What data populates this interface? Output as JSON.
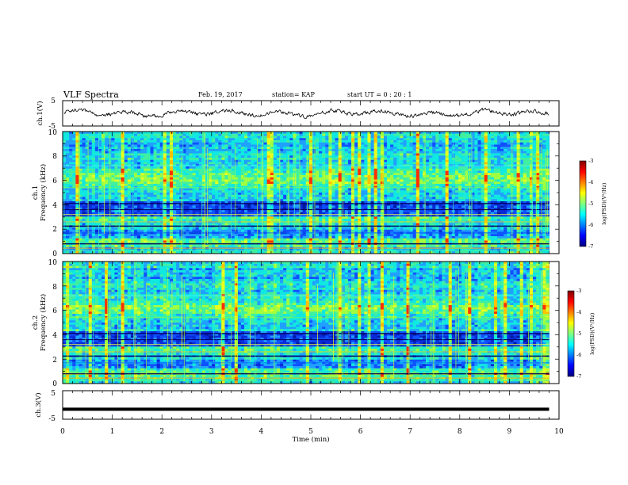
{
  "header": {
    "title": "VLF Spectra",
    "date": "Feb. 19, 2017",
    "station": "station= KAP",
    "start": "start  UT  =   0  : 20 : 1"
  },
  "chart_data": [
    {
      "type": "line",
      "name": "ch1-waveform",
      "ylabel": "ch.1(V)",
      "ylim": [
        -5,
        5
      ],
      "yticks": [
        "5",
        "-5"
      ],
      "xlim": [
        0,
        10
      ],
      "x_end": 9.8,
      "description_values": {
        "mean": 0,
        "amplitude": 1.5
      }
    },
    {
      "type": "heatmap",
      "name": "ch1-spectrogram",
      "ylabel_lines": [
        "ch.1",
        "Frequency  (kHz)"
      ],
      "ylim": [
        0,
        10
      ],
      "yticks": [
        "0",
        "2",
        "4",
        "6",
        "8",
        "10"
      ],
      "xlim": [
        0,
        10
      ],
      "x_end": 9.8,
      "colorbar": {
        "label": "log(PSD)(V²/Hz)",
        "range": [
          -7,
          -3
        ],
        "ticks": [
          "-3",
          "-4",
          "-5",
          "-6",
          "-7"
        ],
        "colors": [
          "#00007f",
          "#0000ff",
          "#007fff",
          "#00ffff",
          "#7fff7f",
          "#ffff00",
          "#ff7f00",
          "#ff0000",
          "#7f0000"
        ]
      }
    },
    {
      "type": "heatmap",
      "name": "ch2-spectrogram",
      "ylabel_lines": [
        "ch.2",
        "Frequency  (kHz)"
      ],
      "ylim": [
        0,
        10
      ],
      "yticks": [
        "0",
        "2",
        "4",
        "6",
        "8",
        "10"
      ],
      "xlim": [
        0,
        10
      ],
      "x_end": 9.8,
      "colorbar": {
        "label": "log(PSD)(V²/Hz)",
        "range": [
          -7,
          -3
        ],
        "ticks": [
          "-3",
          "-4",
          "-5",
          "-6",
          "-7"
        ],
        "colors": [
          "#00007f",
          "#0000ff",
          "#007fff",
          "#00ffff",
          "#7fff7f",
          "#ffff00",
          "#ff7f00",
          "#ff0000",
          "#7f0000"
        ]
      }
    },
    {
      "type": "line",
      "name": "ch3-waveform",
      "ylabel": "ch.3(V)",
      "ylim": [
        -5,
        5
      ],
      "yticks": [
        "5",
        "-5"
      ],
      "xlim": [
        0,
        10
      ],
      "x_end": 9.8,
      "constant_value": -1.5
    }
  ],
  "xaxis": {
    "label": "Time  (min)",
    "ticks": [
      "0",
      "1",
      "2",
      "3",
      "4",
      "5",
      "6",
      "7",
      "8",
      "9",
      "10"
    ]
  }
}
